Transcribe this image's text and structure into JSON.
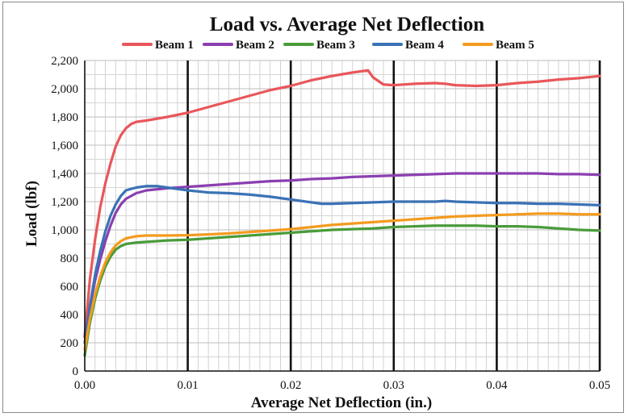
{
  "chart_data": {
    "type": "line",
    "title": "Load vs. Average Net Deflection",
    "xlabel": "Average Net Deflection (in.)",
    "ylabel": "Load (lbf)",
    "xlim": [
      0,
      0.05
    ],
    "ylim": [
      0,
      2200
    ],
    "x_ticks": [
      "0.00",
      "0.01",
      "0.02",
      "0.03",
      "0.04",
      "0.05"
    ],
    "y_ticks": [
      "0",
      "200",
      "400",
      "600",
      "800",
      "1,000",
      "1,200",
      "1,400",
      "1,600",
      "1,800",
      "2,000",
      "2,200"
    ],
    "grid": true,
    "legend_position": "top",
    "series": [
      {
        "name": "Beam 1",
        "color": "#e8575b",
        "points": [
          [
            0,
            250
          ],
          [
            0.0005,
            650
          ],
          [
            0.001,
            930
          ],
          [
            0.0015,
            1160
          ],
          [
            0.002,
            1330
          ],
          [
            0.0025,
            1470
          ],
          [
            0.003,
            1590
          ],
          [
            0.0035,
            1670
          ],
          [
            0.004,
            1720
          ],
          [
            0.0045,
            1750
          ],
          [
            0.005,
            1765
          ],
          [
            0.006,
            1775
          ],
          [
            0.008,
            1800
          ],
          [
            0.01,
            1830
          ],
          [
            0.012,
            1870
          ],
          [
            0.014,
            1910
          ],
          [
            0.016,
            1950
          ],
          [
            0.018,
            1990
          ],
          [
            0.02,
            2020
          ],
          [
            0.022,
            2060
          ],
          [
            0.024,
            2090
          ],
          [
            0.026,
            2115
          ],
          [
            0.0275,
            2130
          ],
          [
            0.028,
            2080
          ],
          [
            0.029,
            2030
          ],
          [
            0.03,
            2025
          ],
          [
            0.032,
            2035
          ],
          [
            0.034,
            2040
          ],
          [
            0.035,
            2035
          ],
          [
            0.036,
            2025
          ],
          [
            0.038,
            2020
          ],
          [
            0.04,
            2025
          ],
          [
            0.042,
            2040
          ],
          [
            0.044,
            2050
          ],
          [
            0.046,
            2065
          ],
          [
            0.048,
            2075
          ],
          [
            0.05,
            2090
          ]
        ]
      },
      {
        "name": "Beam 2",
        "color": "#8b3fb0",
        "points": [
          [
            0,
            240
          ],
          [
            0.0005,
            450
          ],
          [
            0.001,
            640
          ],
          [
            0.0015,
            790
          ],
          [
            0.002,
            920
          ],
          [
            0.0025,
            1030
          ],
          [
            0.003,
            1120
          ],
          [
            0.0035,
            1180
          ],
          [
            0.004,
            1220
          ],
          [
            0.005,
            1260
          ],
          [
            0.006,
            1280
          ],
          [
            0.008,
            1295
          ],
          [
            0.01,
            1305
          ],
          [
            0.012,
            1315
          ],
          [
            0.014,
            1325
          ],
          [
            0.016,
            1335
          ],
          [
            0.018,
            1345
          ],
          [
            0.02,
            1350
          ],
          [
            0.022,
            1360
          ],
          [
            0.024,
            1365
          ],
          [
            0.026,
            1375
          ],
          [
            0.028,
            1380
          ],
          [
            0.03,
            1385
          ],
          [
            0.032,
            1390
          ],
          [
            0.034,
            1395
          ],
          [
            0.036,
            1400
          ],
          [
            0.038,
            1400
          ],
          [
            0.04,
            1400
          ],
          [
            0.042,
            1400
          ],
          [
            0.044,
            1400
          ],
          [
            0.046,
            1395
          ],
          [
            0.048,
            1395
          ],
          [
            0.05,
            1390
          ]
        ]
      },
      {
        "name": "Beam 3",
        "color": "#4a9b3a",
        "points": [
          [
            0,
            110
          ],
          [
            0.0005,
            340
          ],
          [
            0.001,
            510
          ],
          [
            0.0015,
            640
          ],
          [
            0.002,
            740
          ],
          [
            0.0025,
            810
          ],
          [
            0.003,
            860
          ],
          [
            0.0035,
            885
          ],
          [
            0.004,
            900
          ],
          [
            0.005,
            910
          ],
          [
            0.006,
            915
          ],
          [
            0.008,
            925
          ],
          [
            0.01,
            930
          ],
          [
            0.012,
            940
          ],
          [
            0.014,
            950
          ],
          [
            0.016,
            960
          ],
          [
            0.018,
            970
          ],
          [
            0.02,
            980
          ],
          [
            0.022,
            990
          ],
          [
            0.024,
            1000
          ],
          [
            0.026,
            1005
          ],
          [
            0.028,
            1010
          ],
          [
            0.03,
            1020
          ],
          [
            0.032,
            1025
          ],
          [
            0.034,
            1030
          ],
          [
            0.036,
            1030
          ],
          [
            0.038,
            1030
          ],
          [
            0.04,
            1025
          ],
          [
            0.042,
            1025
          ],
          [
            0.044,
            1020
          ],
          [
            0.046,
            1010
          ],
          [
            0.048,
            1000
          ],
          [
            0.05,
            995
          ]
        ]
      },
      {
        "name": "Beam 4",
        "color": "#3a72b5",
        "points": [
          [
            0,
            200
          ],
          [
            0.0005,
            460
          ],
          [
            0.001,
            680
          ],
          [
            0.0015,
            850
          ],
          [
            0.002,
            990
          ],
          [
            0.0025,
            1100
          ],
          [
            0.003,
            1180
          ],
          [
            0.0035,
            1240
          ],
          [
            0.004,
            1280
          ],
          [
            0.005,
            1300
          ],
          [
            0.006,
            1310
          ],
          [
            0.007,
            1310
          ],
          [
            0.008,
            1300
          ],
          [
            0.009,
            1290
          ],
          [
            0.01,
            1280
          ],
          [
            0.012,
            1265
          ],
          [
            0.014,
            1260
          ],
          [
            0.016,
            1250
          ],
          [
            0.018,
            1235
          ],
          [
            0.02,
            1215
          ],
          [
            0.022,
            1195
          ],
          [
            0.023,
            1185
          ],
          [
            0.024,
            1185
          ],
          [
            0.026,
            1190
          ],
          [
            0.028,
            1195
          ],
          [
            0.03,
            1200
          ],
          [
            0.032,
            1200
          ],
          [
            0.034,
            1200
          ],
          [
            0.035,
            1205
          ],
          [
            0.036,
            1200
          ],
          [
            0.038,
            1195
          ],
          [
            0.04,
            1190
          ],
          [
            0.042,
            1190
          ],
          [
            0.044,
            1185
          ],
          [
            0.046,
            1185
          ],
          [
            0.048,
            1180
          ],
          [
            0.05,
            1175
          ]
        ]
      },
      {
        "name": "Beam 5",
        "color": "#f39b1f",
        "points": [
          [
            0,
            150
          ],
          [
            0.0005,
            370
          ],
          [
            0.001,
            540
          ],
          [
            0.0015,
            670
          ],
          [
            0.002,
            770
          ],
          [
            0.0025,
            840
          ],
          [
            0.003,
            890
          ],
          [
            0.0035,
            920
          ],
          [
            0.004,
            940
          ],
          [
            0.005,
            955
          ],
          [
            0.006,
            960
          ],
          [
            0.008,
            960
          ],
          [
            0.01,
            962
          ],
          [
            0.012,
            968
          ],
          [
            0.014,
            975
          ],
          [
            0.016,
            985
          ],
          [
            0.018,
            995
          ],
          [
            0.02,
            1005
          ],
          [
            0.022,
            1020
          ],
          [
            0.024,
            1035
          ],
          [
            0.026,
            1045
          ],
          [
            0.028,
            1055
          ],
          [
            0.03,
            1065
          ],
          [
            0.032,
            1075
          ],
          [
            0.034,
            1085
          ],
          [
            0.036,
            1095
          ],
          [
            0.038,
            1100
          ],
          [
            0.04,
            1105
          ],
          [
            0.042,
            1110
          ],
          [
            0.044,
            1115
          ],
          [
            0.046,
            1115
          ],
          [
            0.048,
            1110
          ],
          [
            0.05,
            1110
          ]
        ]
      }
    ]
  }
}
